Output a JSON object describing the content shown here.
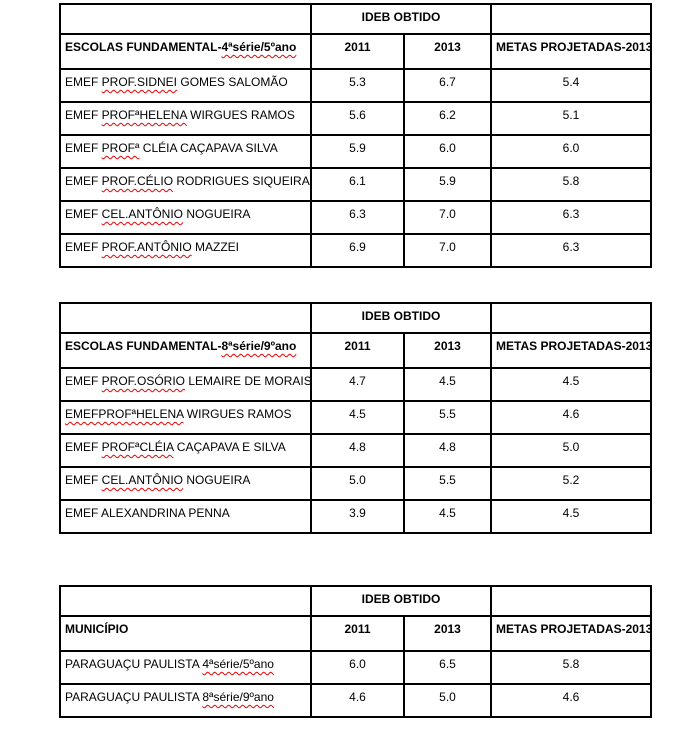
{
  "colors": {
    "border": "#000000",
    "text": "#000000",
    "squiggle": "#ee0000"
  },
  "tables": [
    {
      "ideb_label": "IDEB OBTIDO",
      "row_header": {
        "label_plain": "ESCOLAS FUNDAMENTAL-",
        "label_marked": "4ªsérie/5ºano"
      },
      "col_2011": "2011",
      "col_2013": "2013",
      "col_metas": "METAS PROJETADAS-2013",
      "rows": [
        {
          "pre": "EMEF ",
          "marked": "PROF.SIDNEI",
          "post": " GOMES SALOMÃO",
          "y2011": "5.3",
          "y2013": "6.7",
          "meta": "5.4"
        },
        {
          "pre": "EMEF ",
          "marked": "PROFªHELENA",
          "post": " WIRGUES RAMOS",
          "y2011": "5.6",
          "y2013": "6.2",
          "meta": "5.1"
        },
        {
          "pre": "EMEF ",
          "marked": "PROFª",
          "post": " CLÉIA CAÇAPAVA SILVA",
          "y2011": "5.9",
          "y2013": "6.0",
          "meta": "6.0"
        },
        {
          "pre": "EMEF ",
          "marked": "PROF.CÉLIO",
          "post": " RODRIGUES SIQUEIRA",
          "y2011": "6.1",
          "y2013": "5.9",
          "meta": "5.8"
        },
        {
          "pre": "EMEF ",
          "marked": "CEL.ANTÔNIO",
          "post": " NOGUEIRA",
          "y2011": "6.3",
          "y2013": "7.0",
          "meta": "6.3"
        },
        {
          "pre": "EMEF ",
          "marked": "PROF.ANTÔNIO",
          "post": " MAZZEI",
          "y2011": "6.9",
          "y2013": "7.0",
          "meta": "6.3"
        }
      ]
    },
    {
      "ideb_label": "IDEB OBTIDO",
      "row_header": {
        "label_plain": "ESCOLAS FUNDAMENTAL-",
        "label_marked": "8ªsérie/9ºano"
      },
      "col_2011": "2011",
      "col_2013": "2013",
      "col_metas": "METAS PROJETADAS-2013",
      "rows": [
        {
          "pre": "EMEF ",
          "marked": "PROF.OSÓRIO",
          "post": " LEMAIRE DE MORAIS",
          "y2011": "4.7",
          "y2013": "4.5",
          "meta": "4.5"
        },
        {
          "pre": "",
          "marked": "EMEFPROFªHELENA",
          "post": " WIRGUES RAMOS",
          "y2011": "4.5",
          "y2013": "5.5",
          "meta": "4.6"
        },
        {
          "pre": "EMEF ",
          "marked": "PROFªCLÉIA",
          "post": " CAÇAPAVA E SILVA",
          "y2011": "4.8",
          "y2013": "4.8",
          "meta": "5.0"
        },
        {
          "pre": "EMEF ",
          "marked": "CEL.ANTÔNIO",
          "post": " NOGUEIRA",
          "y2011": "5.0",
          "y2013": "5.5",
          "meta": "5.2"
        },
        {
          "pre": "EMEF ALEXANDRINA PENNA",
          "marked": "",
          "post": "",
          "y2011": "3.9",
          "y2013": "4.5",
          "meta": "4.5"
        }
      ]
    },
    {
      "ideb_label": "IDEB OBTIDO",
      "row_header": {
        "label_plain": "MUNICÍPIO",
        "label_marked": ""
      },
      "col_2011": "2011",
      "col_2013": "2013",
      "col_metas": "METAS PROJETADAS-2013",
      "rows": [
        {
          "pre": "PARAGUAÇU PAULISTA ",
          "marked": "4ªsérie/5ºano",
          "post": "",
          "y2011": "6.0",
          "y2013": "6.5",
          "meta": "5.8"
        },
        {
          "pre": "PARAGUAÇU PAULISTA ",
          "marked": "8ªsérie/9ºano",
          "post": "",
          "y2011": "4.6",
          "y2013": "5.0",
          "meta": "4.6"
        }
      ]
    }
  ]
}
